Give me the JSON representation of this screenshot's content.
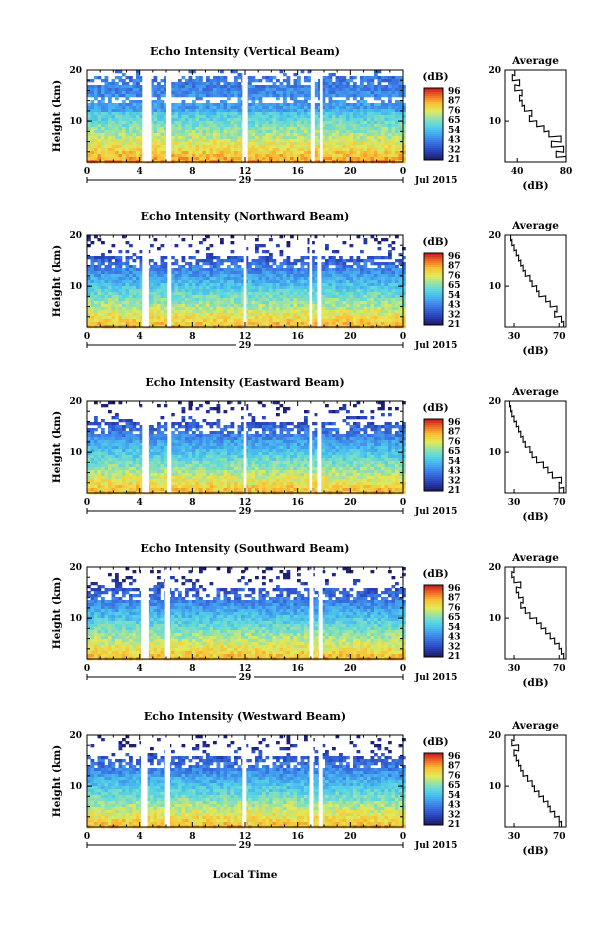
{
  "footer_xlabel": "Local Time",
  "chart_data": [
    {
      "type": "heatmap",
      "title": "Echo Intensity (Vertical Beam)",
      "ylabel": "Height (km)",
      "yticks": [
        "10",
        "20"
      ],
      "ylim": [
        2,
        20
      ],
      "xticks": [
        "0",
        "4",
        "8",
        "12",
        "16",
        "20",
        "0"
      ],
      "xlim": [
        0,
        24
      ],
      "day_label": "29",
      "date_label": "Jul 2015",
      "colorbar_unit": "(dB)",
      "colorbar_ticks": [
        "96",
        "87",
        "76",
        "65",
        "54",
        "43",
        "32",
        "21"
      ],
      "data_gaps_hours": [
        [
          4.2,
          4.9
        ],
        [
          6.0,
          6.4
        ],
        [
          11.8,
          12.2
        ],
        [
          17.0,
          17.3
        ],
        [
          17.7,
          17.9
        ]
      ],
      "avg_title": "Average",
      "avg_xlabel": "(dB)",
      "avg_xticks": [
        "40",
        "80"
      ],
      "avg_xlim": [
        30,
        80
      ],
      "avg_profile": {
        "height_km": [
          2.5,
          3.5,
          4.5,
          5.5,
          6.5,
          7.5,
          8.5,
          9.5,
          10.5,
          11.5,
          12.5,
          13.5,
          14.5,
          15.5,
          16.5,
          17.5,
          18.5,
          19.5
        ],
        "intensity_db": [
          80,
          72,
          78,
          68,
          76,
          66,
          62,
          56,
          50,
          52,
          46,
          44,
          42,
          44,
          38,
          42,
          36,
          38
        ]
      }
    },
    {
      "type": "heatmap",
      "title": "Echo Intensity (Northward Beam)",
      "ylabel": "Height (km)",
      "yticks": [
        "10",
        "20"
      ],
      "ylim": [
        2,
        20
      ],
      "xticks": [
        "0",
        "4",
        "8",
        "12",
        "16",
        "20",
        "0"
      ],
      "xlim": [
        0,
        24
      ],
      "day_label": "29",
      "date_label": "Jul 2015",
      "colorbar_unit": "(dB)",
      "colorbar_ticks": [
        "96",
        "87",
        "76",
        "65",
        "54",
        "43",
        "32",
        "21"
      ],
      "data_gaps_hours": [
        [
          4.2,
          4.7
        ],
        [
          6.1,
          6.4
        ],
        [
          11.9,
          12.1
        ],
        [
          16.9,
          17.1
        ],
        [
          17.5,
          17.8
        ]
      ],
      "avg_title": "Average",
      "avg_xlabel": "(dB)",
      "avg_xticks": [
        "30",
        "70"
      ],
      "avg_xlim": [
        22,
        76
      ],
      "avg_profile": {
        "height_km": [
          2.5,
          3.5,
          4.5,
          5.5,
          6.5,
          7.5,
          8.5,
          9.5,
          10.5,
          11.5,
          12.5,
          13.5,
          14.5,
          15.5,
          16.5,
          17.5,
          18.5,
          19.5
        ],
        "intensity_db": [
          74,
          72,
          66,
          68,
          62,
          58,
          52,
          50,
          46,
          44,
          40,
          38,
          36,
          34,
          32,
          30,
          28,
          27
        ]
      }
    },
    {
      "type": "heatmap",
      "title": "Echo Intensity (Eastward Beam)",
      "ylabel": "Height (km)",
      "yticks": [
        "10",
        "20"
      ],
      "ylim": [
        2,
        20
      ],
      "xticks": [
        "0",
        "4",
        "8",
        "12",
        "16",
        "20",
        "0"
      ],
      "xlim": [
        0,
        24
      ],
      "day_label": "29",
      "date_label": "Jul 2015",
      "colorbar_unit": "(dB)",
      "colorbar_ticks": [
        "96",
        "87",
        "76",
        "65",
        "54",
        "43",
        "32",
        "21"
      ],
      "data_gaps_hours": [
        [
          4.2,
          4.7
        ],
        [
          6.1,
          6.4
        ],
        [
          11.9,
          12.1
        ],
        [
          16.9,
          17.1
        ],
        [
          17.5,
          17.8
        ]
      ],
      "avg_title": "Average",
      "avg_xlabel": "(dB)",
      "avg_xticks": [
        "30",
        "70"
      ],
      "avg_xlim": [
        22,
        76
      ],
      "avg_profile": {
        "height_km": [
          2.5,
          3.5,
          4.5,
          5.5,
          6.5,
          7.5,
          8.5,
          9.5,
          10.5,
          11.5,
          12.5,
          13.5,
          14.5,
          15.5,
          16.5,
          17.5,
          18.5,
          19.5
        ],
        "intensity_db": [
          74,
          70,
          72,
          64,
          60,
          56,
          50,
          46,
          44,
          40,
          38,
          36,
          34,
          32,
          30,
          28,
          27,
          26
        ]
      }
    },
    {
      "type": "heatmap",
      "title": "Echo Intensity (Southward Beam)",
      "ylabel": "Height (km)",
      "yticks": [
        "10",
        "20"
      ],
      "ylim": [
        2,
        20
      ],
      "xticks": [
        "0",
        "4",
        "8",
        "12",
        "16",
        "20",
        "0"
      ],
      "xlim": [
        0,
        24
      ],
      "day_label": "29",
      "date_label": "Jul 2015",
      "colorbar_unit": "(dB)",
      "colorbar_ticks": [
        "96",
        "87",
        "76",
        "65",
        "54",
        "43",
        "32",
        "21"
      ],
      "data_gaps_hours": [
        [
          4.1,
          4.7
        ],
        [
          5.9,
          6.3
        ],
        [
          16.9,
          17.2
        ],
        [
          17.6,
          17.9
        ]
      ],
      "avg_title": "Average",
      "avg_xlabel": "(dB)",
      "avg_xticks": [
        "30",
        "70"
      ],
      "avg_xlim": [
        22,
        76
      ],
      "avg_profile": {
        "height_km": [
          2.5,
          3.5,
          4.5,
          5.5,
          6.5,
          7.5,
          8.5,
          9.5,
          10.5,
          11.5,
          12.5,
          13.5,
          14.5,
          15.5,
          16.5,
          17.5,
          18.5,
          19.5
        ],
        "intensity_db": [
          74,
          72,
          70,
          66,
          62,
          58,
          54,
          50,
          44,
          40,
          36,
          38,
          34,
          32,
          36,
          30,
          28,
          30
        ]
      }
    },
    {
      "type": "heatmap",
      "title": "Echo Intensity (Westward Beam)",
      "ylabel": "Height (km)",
      "yticks": [
        "10",
        "20"
      ],
      "ylim": [
        2,
        20
      ],
      "xticks": [
        "0",
        "4",
        "8",
        "12",
        "16",
        "20",
        "0"
      ],
      "xlim": [
        0,
        24
      ],
      "day_label": "29",
      "date_label": "Jul 2015",
      "colorbar_unit": "(dB)",
      "colorbar_ticks": [
        "96",
        "87",
        "76",
        "65",
        "54",
        "43",
        "32",
        "21"
      ],
      "data_gaps_hours": [
        [
          4.1,
          4.6
        ],
        [
          5.9,
          6.3
        ],
        [
          11.8,
          12.1
        ],
        [
          16.9,
          17.2
        ],
        [
          17.6,
          17.9
        ]
      ],
      "avg_title": "Average",
      "avg_xlabel": "(dB)",
      "avg_xticks": [
        "30",
        "70"
      ],
      "avg_xlim": [
        22,
        76
      ],
      "avg_profile": {
        "height_km": [
          2.5,
          3.5,
          4.5,
          5.5,
          6.5,
          7.5,
          8.5,
          9.5,
          10.5,
          11.5,
          12.5,
          13.5,
          14.5,
          15.5,
          16.5,
          17.5,
          18.5,
          19.5
        ],
        "intensity_db": [
          72,
          70,
          66,
          62,
          60,
          56,
          52,
          48,
          46,
          42,
          38,
          36,
          34,
          32,
          30,
          34,
          28,
          30
        ]
      }
    }
  ]
}
